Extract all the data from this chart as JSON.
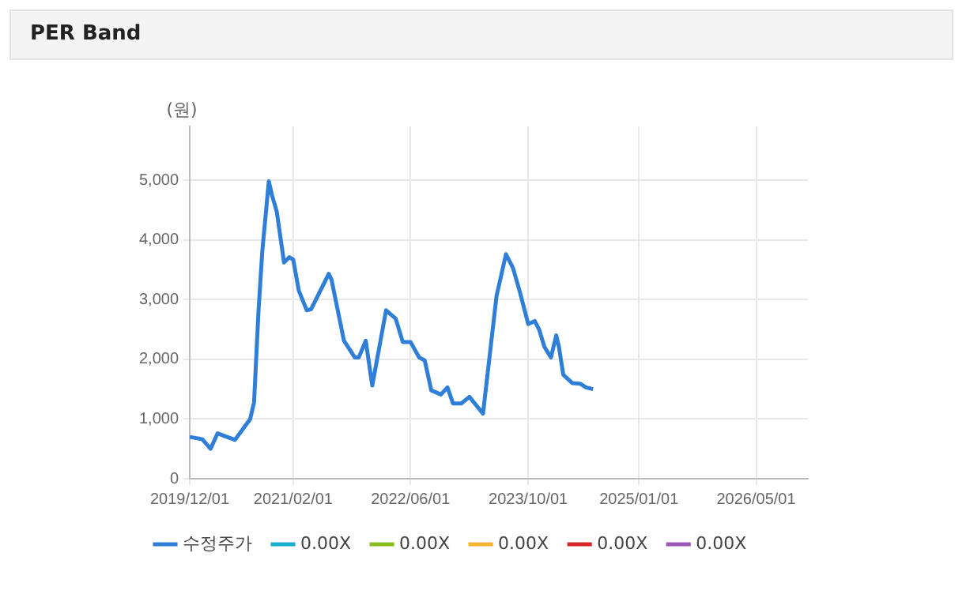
{
  "chart_data": {
    "type": "line",
    "title": "PER Band",
    "ylabel": "(원)",
    "x": [
      "2019-12-01",
      "2020-01-22",
      "2020-02-25",
      "2020-03-25",
      "2020-06-05",
      "2020-07-20",
      "2020-08-07",
      "2020-08-23",
      "2020-09-10",
      "2020-09-26",
      "2020-10-23",
      "2020-11-05",
      "2020-11-25",
      "2020-12-25",
      "2021-01-16",
      "2021-02-01",
      "2021-02-24",
      "2021-03-29",
      "2021-04-16",
      "2021-06-28",
      "2021-07-09",
      "2021-08-30",
      "2021-10-14",
      "2021-10-30",
      "2021-11-28",
      "2021-12-25",
      "2022-02-20",
      "2022-04-01",
      "2022-04-30",
      "2022-06-01",
      "2022-07-07",
      "2022-07-30",
      "2022-08-26",
      "2022-10-05",
      "2022-11-01",
      "2022-11-24",
      "2022-12-28",
      "2023-01-31",
      "2023-03-28",
      "2023-05-23",
      "2023-07-01",
      "2023-07-30",
      "2023-08-26",
      "2023-10-01",
      "2023-10-28",
      "2023-11-15",
      "2023-12-07",
      "2024-01-03",
      "2024-01-25",
      "2024-02-05",
      "2024-02-23",
      "2024-04-01",
      "2024-05-04",
      "2024-05-27",
      "2024-06-25"
    ],
    "series": [
      {
        "name": "수정주가",
        "color": "#2f7ed8",
        "values": [
          700,
          660,
          500,
          760,
          650,
          900,
          1000,
          1280,
          2780,
          3810,
          4980,
          4750,
          4470,
          3620,
          3710,
          3670,
          3150,
          2820,
          2840,
          3430,
          3340,
          2310,
          2030,
          2030,
          2310,
          1560,
          2820,
          2680,
          2290,
          2290,
          2030,
          1980,
          1480,
          1410,
          1530,
          1260,
          1260,
          1370,
          1090,
          3060,
          3760,
          3530,
          3150,
          2590,
          2640,
          2500,
          2210,
          2030,
          2400,
          2210,
          1740,
          1600,
          1590,
          1530,
          1500
        ]
      },
      {
        "name": "0.00X",
        "color": "#1aadce",
        "values": [
          null,
          null,
          null,
          null,
          null,
          null,
          null,
          null,
          null,
          null,
          null,
          null,
          null,
          null,
          null,
          null,
          null,
          null,
          null,
          null,
          null,
          null,
          null,
          null,
          null,
          null,
          null,
          null,
          null,
          null,
          null,
          null,
          null,
          null,
          null,
          null,
          null,
          null,
          null,
          null,
          null,
          null,
          null,
          null,
          null,
          null,
          null,
          null,
          null,
          null,
          null,
          null,
          null,
          null,
          null
        ]
      },
      {
        "name": "0.00X",
        "color": "#8bbc21",
        "values": [
          null,
          null,
          null,
          null,
          null,
          null,
          null,
          null,
          null,
          null,
          null,
          null,
          null,
          null,
          null,
          null,
          null,
          null,
          null,
          null,
          null,
          null,
          null,
          null,
          null,
          null,
          null,
          null,
          null,
          null,
          null,
          null,
          null,
          null,
          null,
          null,
          null,
          null,
          null,
          null,
          null,
          null,
          null,
          null,
          null,
          null,
          null,
          null,
          null,
          null,
          null,
          null,
          null,
          null,
          null
        ]
      },
      {
        "name": "0.00X",
        "color": "#f5b335",
        "values": [
          null,
          null,
          null,
          null,
          null,
          null,
          null,
          null,
          null,
          null,
          null,
          null,
          null,
          null,
          null,
          null,
          null,
          null,
          null,
          null,
          null,
          null,
          null,
          null,
          null,
          null,
          null,
          null,
          null,
          null,
          null,
          null,
          null,
          null,
          null,
          null,
          null,
          null,
          null,
          null,
          null,
          null,
          null,
          null,
          null,
          null,
          null,
          null,
          null,
          null,
          null,
          null,
          null,
          null,
          null
        ]
      },
      {
        "name": "0.00X",
        "color": "#d62728",
        "values": [
          null,
          null,
          null,
          null,
          null,
          null,
          null,
          null,
          null,
          null,
          null,
          null,
          null,
          null,
          null,
          null,
          null,
          null,
          null,
          null,
          null,
          null,
          null,
          null,
          null,
          null,
          null,
          null,
          null,
          null,
          null,
          null,
          null,
          null,
          null,
          null,
          null,
          null,
          null,
          null,
          null,
          null,
          null,
          null,
          null,
          null,
          null,
          null,
          null,
          null,
          null,
          null,
          null,
          null,
          null
        ]
      },
      {
        "name": "0.00X",
        "color": "#9b59b6",
        "values": [
          null,
          null,
          null,
          null,
          null,
          null,
          null,
          null,
          null,
          null,
          null,
          null,
          null,
          null,
          null,
          null,
          null,
          null,
          null,
          null,
          null,
          null,
          null,
          null,
          null,
          null,
          null,
          null,
          null,
          null,
          null,
          null,
          null,
          null,
          null,
          null,
          null,
          null,
          null,
          null,
          null,
          null,
          null,
          null,
          null,
          null,
          null,
          null,
          null,
          null,
          null,
          null,
          null,
          null,
          null
        ]
      }
    ],
    "xlim": [
      "2019-12-01",
      "2026-12-01"
    ],
    "xticks": [
      {
        "value": "2019-12-01",
        "label": "2019/12/01"
      },
      {
        "value": "2021-02-01",
        "label": "2021/02/01"
      },
      {
        "value": "2022-06-01",
        "label": "2022/06/01"
      },
      {
        "value": "2023-10-01",
        "label": "2023/10/01"
      },
      {
        "value": "2025-01-01",
        "label": "2025/01/01"
      },
      {
        "value": "2026-05-01",
        "label": "2026/05/01"
      }
    ],
    "ylim": [
      0,
      5900
    ],
    "yticks": [
      {
        "value": 0,
        "label": "0"
      },
      {
        "value": 1000,
        "label": "1,000"
      },
      {
        "value": 2000,
        "label": "2,000"
      },
      {
        "value": 3000,
        "label": "3,000"
      },
      {
        "value": 4000,
        "label": "4,000"
      },
      {
        "value": 5000,
        "label": "5,000"
      }
    ],
    "grid": true,
    "legend": "bottom",
    "marker": "none",
    "line_style": "solid"
  }
}
